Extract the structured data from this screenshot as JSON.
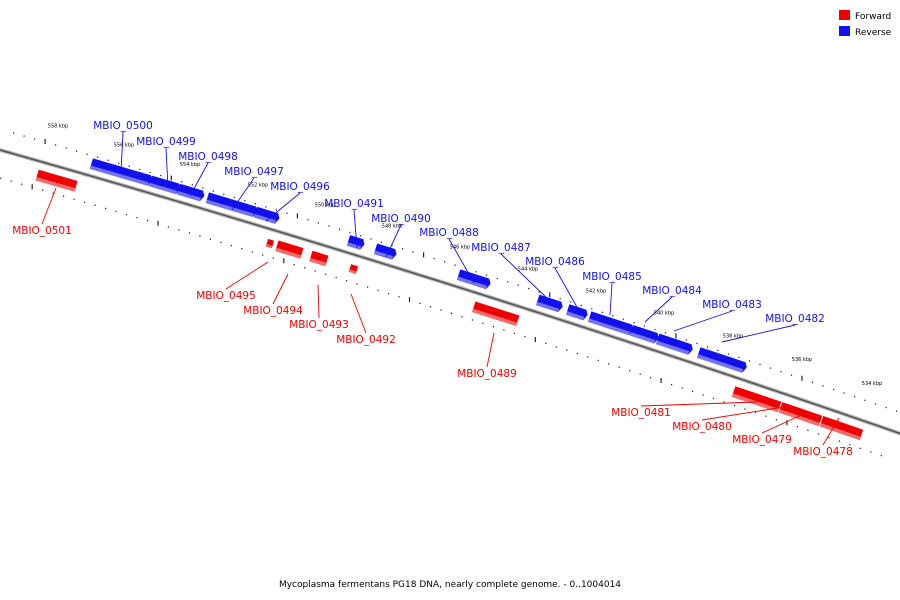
{
  "caption": "Mycoplasma fermentans PG18 DNA, nearly complete genome. - 0..1004014",
  "legend": [
    {
      "label": "Forward",
      "color": "#ee0000"
    },
    {
      "label": "Reverse",
      "color": "#1111ee"
    }
  ],
  "colors": {
    "forward": "#ee0000",
    "reverse": "#1111ee",
    "backbone": "#777777"
  },
  "kbp_ticks": [
    "558 kbp",
    "556 kbp",
    "554 kbp",
    "552 kbp",
    "550 kbp",
    "548 kbp",
    "546 kbp",
    "544 kbp",
    "542 kbp",
    "540 kbp",
    "538 kbp",
    "536 kbp",
    "534 kbp"
  ],
  "genes": [
    {
      "name": "MBIO_0501",
      "strand": "forward"
    },
    {
      "name": "MBIO_0500",
      "strand": "reverse"
    },
    {
      "name": "MBIO_0499",
      "strand": "reverse"
    },
    {
      "name": "MBIO_0498",
      "strand": "reverse"
    },
    {
      "name": "MBIO_0497",
      "strand": "reverse"
    },
    {
      "name": "MBIO_0496",
      "strand": "reverse"
    },
    {
      "name": "MBIO_0495",
      "strand": "forward"
    },
    {
      "name": "MBIO_0494",
      "strand": "forward"
    },
    {
      "name": "MBIO_0493",
      "strand": "forward"
    },
    {
      "name": "MBIO_0492",
      "strand": "forward"
    },
    {
      "name": "MBIO_0491",
      "strand": "reverse"
    },
    {
      "name": "MBIO_0490",
      "strand": "reverse"
    },
    {
      "name": "MBIO_0489",
      "strand": "forward"
    },
    {
      "name": "MBIO_0488",
      "strand": "reverse"
    },
    {
      "name": "MBIO_0487",
      "strand": "reverse"
    },
    {
      "name": "MBIO_0486",
      "strand": "reverse"
    },
    {
      "name": "MBIO_0485",
      "strand": "reverse"
    },
    {
      "name": "MBIO_0484",
      "strand": "reverse"
    },
    {
      "name": "MBIO_0483",
      "strand": "reverse"
    },
    {
      "name": "MBIO_0482",
      "strand": "reverse"
    },
    {
      "name": "MBIO_0481",
      "strand": "forward"
    },
    {
      "name": "MBIO_0480",
      "strand": "forward"
    },
    {
      "name": "MBIO_0479",
      "strand": "forward"
    },
    {
      "name": "MBIO_0478",
      "strand": "forward"
    }
  ]
}
